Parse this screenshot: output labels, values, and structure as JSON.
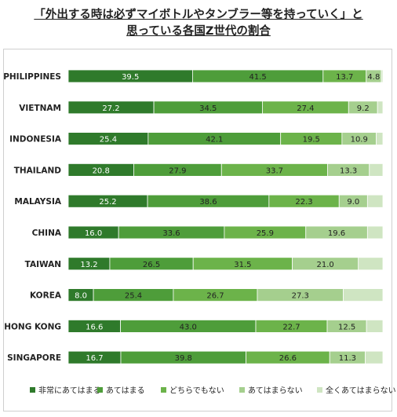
{
  "chart_data": {
    "type": "bar",
    "stacked": true,
    "orientation": "horizontal",
    "normalized_to": 100,
    "title_lines": [
      "「外出する時は必ずマイボトルやタンブラー等を持っていく」と",
      "思っている各国Z世代の割合"
    ],
    "categories": [
      "PHILIPPINES",
      "VIETNAM",
      "INDONESIA",
      "THAILAND",
      "MALAYSIA",
      "CHINA",
      "TAIWAN",
      "KOREA",
      "HONG KONG",
      "SINGAPORE"
    ],
    "series": [
      {
        "name": "非常にあてはまる",
        "color": "#2f7a2b",
        "values": [
          39.5,
          27.2,
          25.4,
          20.8,
          25.2,
          16.0,
          13.2,
          8.0,
          16.6,
          16.7
        ]
      },
      {
        "name": "あてはまる",
        "color": "#4e9d3a",
        "values": [
          41.5,
          34.5,
          42.1,
          27.9,
          38.6,
          33.6,
          26.5,
          25.4,
          43.0,
          39.8
        ]
      },
      {
        "name": "どちらでもない",
        "color": "#6cb34a",
        "values": [
          13.7,
          27.4,
          19.5,
          33.7,
          22.3,
          25.9,
          31.5,
          26.7,
          22.7,
          26.6
        ]
      },
      {
        "name": "あてはまらない",
        "color": "#a5cf8e",
        "values": [
          4.8,
          9.2,
          10.9,
          13.3,
          9.0,
          19.6,
          21.0,
          27.3,
          12.5,
          11.3
        ]
      },
      {
        "name": "全くあてはまらない",
        "color": "#cfe5c2",
        "values": [
          0.5,
          1.7,
          2.1,
          4.3,
          4.9,
          4.9,
          7.8,
          12.6,
          5.2,
          5.6
        ]
      }
    ],
    "value_labels": [
      [
        "39.5",
        "41.5",
        "13.7",
        "4.8",
        ""
      ],
      [
        "27.2",
        "34.5",
        "27.4",
        "9.2",
        ""
      ],
      [
        "25.4",
        "42.1",
        "19.5",
        "10.9",
        ""
      ],
      [
        "20.8",
        "27.9",
        "33.7",
        "13.3",
        ""
      ],
      [
        "25.2",
        "38.6",
        "22.3",
        "9.0",
        ""
      ],
      [
        "16.0",
        "33.6",
        "25.9",
        "19.6",
        ""
      ],
      [
        "13.2",
        "26.5",
        "31.5",
        "21.0",
        ""
      ],
      [
        "8.0",
        "25.4",
        "26.7",
        "27.3",
        ""
      ],
      [
        "16.6",
        "43.0",
        "22.7",
        "12.5",
        ""
      ],
      [
        "16.7",
        "39.8",
        "26.6",
        "11.3",
        ""
      ]
    ],
    "legend_position": "bottom",
    "grid": false
  }
}
